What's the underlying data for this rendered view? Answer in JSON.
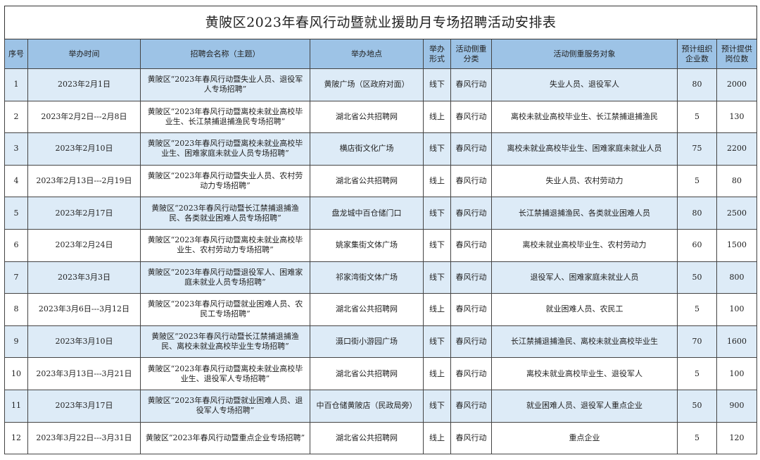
{
  "title": "黄陂区2023年春风行动暨就业援助月专场招聘活动安排表",
  "headers": [
    "序号",
    "举办时间",
    "招聘会名称（主题）",
    "举办地点",
    "举办形式",
    "活动侧重分类",
    "活动侧重服务对象",
    "预计组织企业数",
    "预计提供岗位数"
  ],
  "colors": {
    "header_bg": "#9dc3e6",
    "alt_row_bg": "#ddebf7"
  },
  "rows": [
    {
      "no": "1",
      "date": "2023年2月1日",
      "name": "黄陂区“2023年春风行动暨失业人员、退役军人专场招聘”",
      "place": "黄陂广场（区政府对面）",
      "form": "线下",
      "category": "春风行动",
      "target": "失业人员、退役军人",
      "companies": "80",
      "jobs": "2000"
    },
    {
      "no": "2",
      "date": "2023年2月2日---2月8日",
      "name": "黄陂区“2023年春风行动暨离校未就业高校毕业生、长江禁捕退捕渔民专场招聘”",
      "place": "湖北省公共招聘网",
      "form": "线上",
      "category": "春风行动",
      "target": "离校未就业高校毕业生、长江禁捕退捕渔民",
      "companies": "5",
      "jobs": "130"
    },
    {
      "no": "3",
      "date": "2023年2月10日",
      "name": "黄陂区“2023年春风行动暨离校未就业高校毕业生、困难家庭未就业人员专场招聘”",
      "place": "横店街文化广场",
      "form": "线下",
      "category": "春风行动",
      "target": "离校未就业高校毕业生、困难家庭未就业人员",
      "companies": "75",
      "jobs": "2200"
    },
    {
      "no": "4",
      "date": "2023年2月13日---2月19日",
      "name": "黄陂区“2023年春风行动暨失业人员、农村劳动力专场招聘”",
      "place": "湖北省公共招聘网",
      "form": "线上",
      "category": "春风行动",
      "target": "失业人员、农村劳动力",
      "companies": "5",
      "jobs": "80"
    },
    {
      "no": "5",
      "date": "2023年2月17日",
      "name": "黄陂区“2023年春风行动暨长江禁捕退捕渔民、各类就业困难人员专场招聘”",
      "place": "盘龙城中百仓储门口",
      "form": "线下",
      "category": "春风行动",
      "target": "长江禁捕退捕渔民、各类就业困难人员",
      "companies": "80",
      "jobs": "2500"
    },
    {
      "no": "6",
      "date": "2023年2月24日",
      "name": "黄陂区“2023年春风行动暨离校未就业高校毕业生、农村劳动力专场招聘”",
      "place": "姚家集街文体广场",
      "form": "线下",
      "category": "春风行动",
      "target": "离校未就业高校毕业生、农村劳动力",
      "companies": "60",
      "jobs": "1500"
    },
    {
      "no": "7",
      "date": "2023年3月3日",
      "name": "黄陂区“2023年春风行动暨退役军人、困难家庭未就业人员专场招聘”",
      "place": "祁家湾街文体广场",
      "form": "线下",
      "category": "春风行动",
      "target": "退役军人、困难家庭未就业人员",
      "companies": "50",
      "jobs": "800"
    },
    {
      "no": "8",
      "date": "2023年3月6日---3月12日",
      "name": "黄陂区“2023年春风行动暨就业困难人员、农民工专场招聘”",
      "place": "湖北省公共招聘网",
      "form": "线上",
      "category": "春风行动",
      "target": "就业困难人员、农民工",
      "companies": "5",
      "jobs": "100"
    },
    {
      "no": "9",
      "date": "2023年3月10日",
      "name": "黄陂区“2023年春风行动暨长江禁捕退捕渔民、离校未就业高校毕业生专场招聘”",
      "place": "滠口街小游园广场",
      "form": "线下",
      "category": "春风行动",
      "target": "长江禁捕退捕渔民、离校未就业高校毕业生",
      "companies": "70",
      "jobs": "1600"
    },
    {
      "no": "10",
      "date": "2023年3月13日---3月21日",
      "name": "黄陂区“2023年春风行动暨离校未就业高校毕业生、退役军人专场招聘”",
      "place": "湖北省公共招聘网",
      "form": "线上",
      "category": "春风行动",
      "target": "离校未就业高校毕业生、退役军人",
      "companies": "5",
      "jobs": "100"
    },
    {
      "no": "11",
      "date": "2023年3月17日",
      "name": "黄陂区“2023年春风行动暨就业困难人员、退役军人专场招聘”",
      "place": "中百仓储黄陂店（民政局旁）",
      "form": "线下",
      "category": "春风行动",
      "target": "就业困难人员、退役军人重点企业",
      "companies": "50",
      "jobs": "900"
    },
    {
      "no": "12",
      "date": "2023年3月22日---3月31日",
      "name": "黄陂区“2023年春风行动暨重点企业专场招聘”",
      "place": "湖北省公共招聘网",
      "form": "线上",
      "category": "春风行动",
      "target": "重点企业",
      "companies": "5",
      "jobs": "120"
    }
  ]
}
